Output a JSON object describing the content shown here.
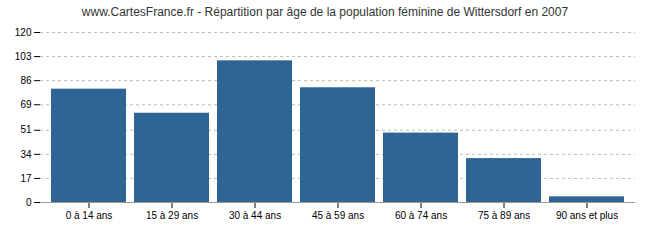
{
  "chart_data": {
    "type": "bar",
    "title": "www.CartesFrance.fr - Répartition par âge de la population féminine de Wittersdorf en 2007",
    "categories": [
      "0 à 14 ans",
      "15 à 29 ans",
      "30 à 44 ans",
      "45 à 59 ans",
      "60 à 74 ans",
      "75 à 89 ans",
      "90 ans et plus"
    ],
    "values": [
      80,
      63,
      100,
      81,
      49,
      31,
      4
    ],
    "color": "#2e6594",
    "ylim": [
      0,
      120
    ],
    "yticks": [
      0,
      17,
      34,
      51,
      69,
      86,
      103,
      120
    ],
    "grid": true
  }
}
